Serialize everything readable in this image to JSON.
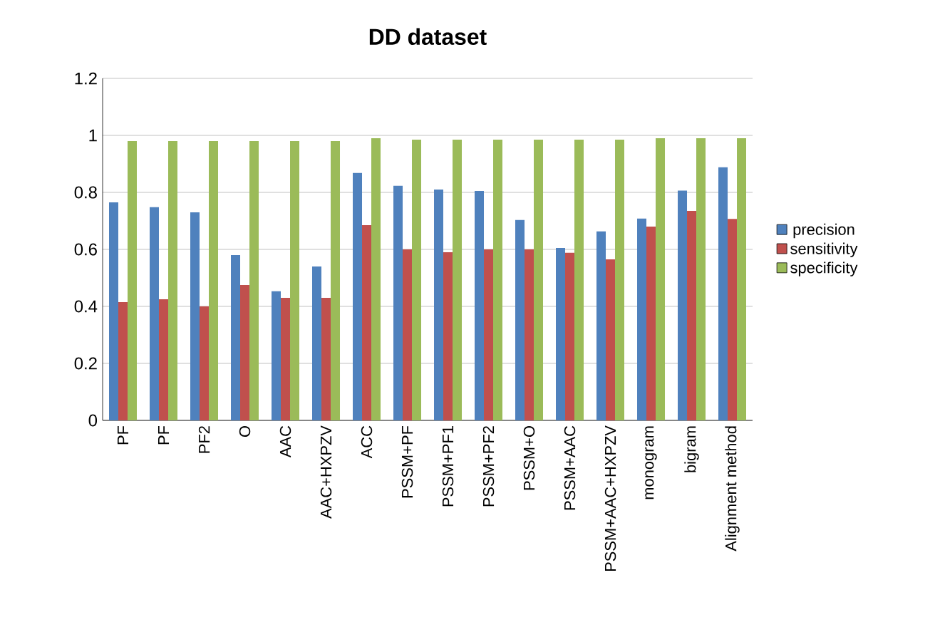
{
  "chart_data": {
    "type": "bar",
    "title": "DD dataset",
    "categories": [
      "PF",
      "PF",
      "PF2",
      "O",
      "AAC",
      "AAC+HXPZV",
      "ACC",
      "PSSM+PF",
      "PSSM+PF1",
      "PSSM+PF2",
      "PSSM+O",
      "PSSM+AAC",
      "PSSM+AAC+HXPZV",
      "monogram",
      "bigram",
      "Alignment method"
    ],
    "series": [
      {
        "name": "precision",
        "color": "#4f81bd",
        "values": [
          0.765,
          0.748,
          0.73,
          0.58,
          0.453,
          0.54,
          0.868,
          0.823,
          0.81,
          0.805,
          0.703,
          0.605,
          0.663,
          0.708,
          0.806,
          0.888
        ]
      },
      {
        "name": "sensitivity",
        "color": "#c0504d",
        "values": [
          0.415,
          0.425,
          0.4,
          0.475,
          0.43,
          0.43,
          0.685,
          0.6,
          0.59,
          0.6,
          0.6,
          0.588,
          0.565,
          0.68,
          0.735,
          0.707
        ]
      },
      {
        "name": "specificity",
        "color": "#9bbb59",
        "values": [
          0.98,
          0.98,
          0.98,
          0.98,
          0.98,
          0.98,
          0.99,
          0.985,
          0.985,
          0.985,
          0.985,
          0.985,
          0.985,
          0.99,
          0.99,
          0.99
        ]
      }
    ],
    "ylim": [
      0,
      1.2
    ],
    "yticks": [
      0,
      0.2,
      0.4,
      0.6,
      0.8,
      1,
      1.2
    ],
    "grid": "y",
    "legend": "right"
  }
}
